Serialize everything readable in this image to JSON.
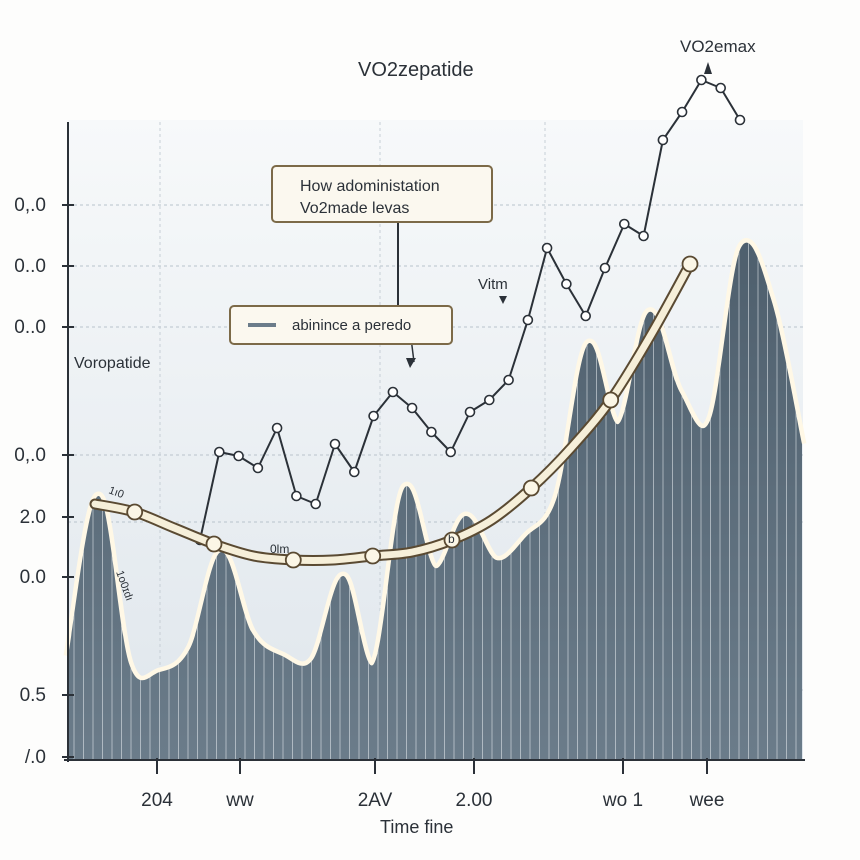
{
  "chart_data": {
    "type": "area",
    "title": "VO2zepatide",
    "peak_annotation": "VO2emax",
    "xlabel": "Time fine",
    "series_label": "Voropatide",
    "callout": {
      "line1": "How adoministation",
      "line2": "Vo2made levas"
    },
    "legend": {
      "label": "abinince a peredo"
    },
    "annotations": {
      "vitm": "Vitm",
      "left_start": "1ı0",
      "left_side": "1o0ɪdı",
      "trough": "0lm",
      "mid_b": "b"
    },
    "x_ticks": [
      "204",
      "ww",
      "2AV",
      "2.00",
      "wo 1",
      "wee"
    ],
    "y_ticks": [
      "0,.0",
      "0..0",
      "0..0",
      "0,.0",
      "2.0",
      "0.0",
      "0.5",
      "/.0"
    ],
    "area_values": [
      2.6,
      6.6,
      2.4,
      2.2,
      2.8,
      5.2,
      3.2,
      2.6,
      2.5,
      4.6,
      2.4,
      6.8,
      4.8,
      6.1,
      5.0,
      5.6,
      6.6,
      10.4,
      8.4,
      11.2,
      9.2,
      8.5,
      12.8,
      11.5,
      7.9
    ],
    "dotted_series": [
      5.5,
      7.7,
      7.6,
      7.3,
      8.3,
      6.6,
      6.4,
      7.9,
      7.2,
      8.6,
      9.2,
      8.8,
      8.2,
      7.7,
      8.7,
      9.0,
      9.5,
      11.0,
      12.8,
      11.9,
      11.1,
      12.3,
      13.4,
      13.1,
      15.5,
      16.2,
      17.0,
      16.8,
      16.0
    ],
    "trend_line": [
      6.4,
      6.2,
      5.8,
      5.4,
      5.1,
      5.0,
      5.0,
      5.1,
      5.2,
      5.5,
      6.0,
      6.8,
      7.8,
      9.0,
      10.6,
      12.4
    ],
    "ylim": [
      0,
      18
    ]
  }
}
